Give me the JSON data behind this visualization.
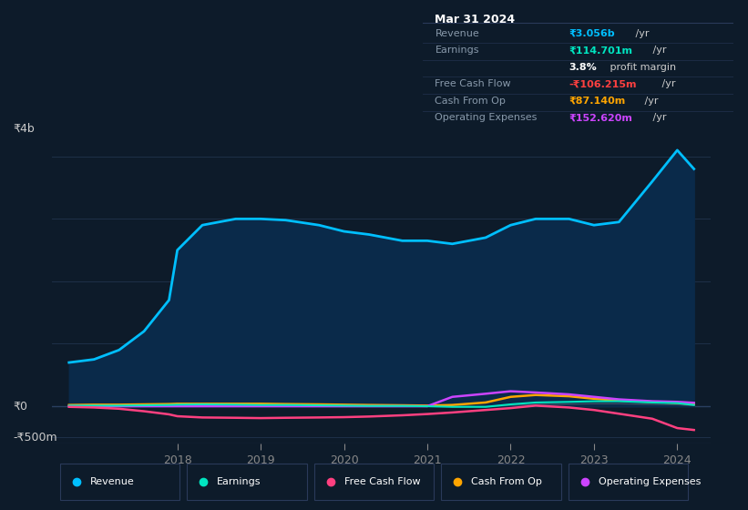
{
  "bg_color": "#0d1b2a",
  "plot_bg_color": "#0d1b2a",
  "grid_color": "#1e3048",
  "ylabel_top": "₹4b",
  "ylabel_zero": "₹0",
  "ylabel_neg": "-₹500m",
  "years": [
    2016.7,
    2017.0,
    2017.3,
    2017.6,
    2017.9,
    2018.0,
    2018.3,
    2018.7,
    2019.0,
    2019.3,
    2019.7,
    2020.0,
    2020.3,
    2020.7,
    2021.0,
    2021.3,
    2021.7,
    2022.0,
    2022.3,
    2022.7,
    2023.0,
    2023.3,
    2023.7,
    2024.0,
    2024.2
  ],
  "revenue": [
    700,
    750,
    900,
    1200,
    1700,
    2500,
    2900,
    3000,
    3000,
    2980,
    2900,
    2800,
    2750,
    2650,
    2650,
    2600,
    2700,
    2900,
    3000,
    3000,
    2900,
    2950,
    3600,
    4100,
    3800
  ],
  "earnings": [
    10,
    10,
    10,
    15,
    20,
    25,
    30,
    25,
    20,
    20,
    15,
    10,
    5,
    5,
    0,
    -10,
    -10,
    30,
    60,
    70,
    80,
    80,
    60,
    50,
    20
  ],
  "free_cash_flow": [
    -10,
    -20,
    -40,
    -80,
    -130,
    -160,
    -180,
    -185,
    -190,
    -185,
    -180,
    -175,
    -165,
    -145,
    -125,
    -100,
    -60,
    -30,
    10,
    -20,
    -60,
    -120,
    -200,
    -350,
    -380
  ],
  "cash_from_op": [
    20,
    25,
    25,
    30,
    35,
    40,
    40,
    40,
    40,
    35,
    30,
    25,
    20,
    15,
    10,
    20,
    60,
    150,
    180,
    160,
    120,
    90,
    70,
    55,
    30
  ],
  "operating_expenses": [
    0,
    0,
    0,
    0,
    0,
    0,
    0,
    0,
    0,
    0,
    0,
    0,
    0,
    0,
    0,
    150,
    200,
    240,
    220,
    190,
    150,
    110,
    80,
    70,
    55
  ],
  "revenue_color": "#00bfff",
  "revenue_fill": "#0a2a4a",
  "earnings_color": "#00e5c0",
  "fcf_color": "#ff4080",
  "cash_op_color": "#ffa500",
  "op_exp_color": "#cc44ff",
  "legend_labels": [
    "Revenue",
    "Earnings",
    "Free Cash Flow",
    "Cash From Op",
    "Operating Expenses"
  ],
  "info_box_title": "Mar 31 2024",
  "info_rows": [
    {
      "label": "Revenue",
      "value": "₹3.056b",
      "suffix": " /yr",
      "value_color": "#00bfff",
      "bold": true
    },
    {
      "label": "Earnings",
      "value": "₹114.701m",
      "suffix": " /yr",
      "value_color": "#00e5c0",
      "bold": true
    },
    {
      "label": "",
      "value": "3.8%",
      "suffix": " profit margin",
      "value_color": "#ffffff",
      "bold": true
    },
    {
      "label": "Free Cash Flow",
      "value": "-₹106.215m",
      "suffix": " /yr",
      "value_color": "#ff4040",
      "bold": true
    },
    {
      "label": "Cash From Op",
      "value": "₹87.140m",
      "suffix": " /yr",
      "value_color": "#ffa500",
      "bold": true
    },
    {
      "label": "Operating Expenses",
      "value": "₹152.620m",
      "suffix": " /yr",
      "value_color": "#cc44ff",
      "bold": true
    }
  ],
  "xticks": [
    2018,
    2019,
    2020,
    2021,
    2022,
    2023,
    2024
  ],
  "xlim": [
    2016.5,
    2024.4
  ],
  "ylim": [
    -600,
    4300
  ]
}
